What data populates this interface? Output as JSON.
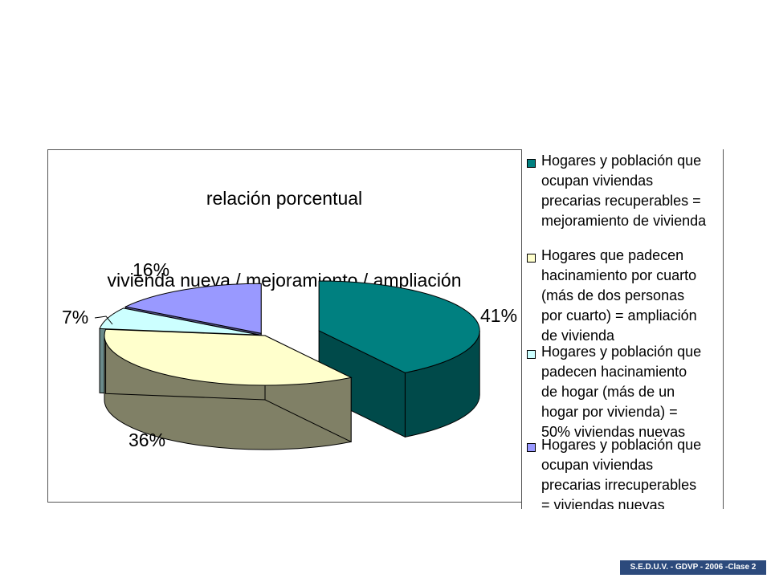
{
  "chart_data": {
    "type": "pie",
    "title_lines": [
      "relación porcentual",
      "vivienda nueva / mejoramiento / ampliación"
    ],
    "slices": [
      {
        "name": "Hogares y población que ocupan viviendas precarias recuperables = mejoramiento de vivienda",
        "value": 41,
        "label": "41%",
        "color": "#008080",
        "side_color": "#004a4a"
      },
      {
        "name": "Hogares que padecen hacinamiento por cuarto (más de dos personas por cuarto) = ampliación de vivienda",
        "value": 36,
        "label": "36%",
        "color": "#ffffcc",
        "side_color": "#808066"
      },
      {
        "name": "Hogares y población que padecen hacinamiento de hogar (más de un hogar por vivienda) = 50% viviendas nuevas",
        "value": 7,
        "label": "7%",
        "color": "#ccffff",
        "side_color": "#6a8a8a"
      },
      {
        "name": "Hogares y población que ocupan viviendas precarias irrecuperables = viviendas nuevas",
        "value": 16,
        "label": "16%",
        "color": "#9999ff",
        "side_color": "#4d4d80"
      }
    ],
    "legend": {
      "position": "right",
      "items": [
        {
          "text": "Hogares y población que\nocupan viviendas\nprecarias recuperables =\nmejoramiento de vivienda",
          "color": "#008080"
        },
        {
          "text": "Hogares que padecen\nhacinamiento por cuarto\n(más de dos personas\npor cuarto) = ampliación\nde vivienda",
          "color": "#ffffcc"
        },
        {
          "text": "Hogares y población que\npadecen hacinamiento\nde hogar (más de un\nhogar por vivienda) =\n50% viviendas nuevas",
          "color": "#ccffff"
        },
        {
          "text": "Hogares y población que\nocupan viviendas\nprecarias irrecuperables\n= viviendas nuevas",
          "color": "#9999ff"
        }
      ]
    }
  },
  "footer": "S.E.D.U.V. - GDVP - 2006 -Clase 2"
}
